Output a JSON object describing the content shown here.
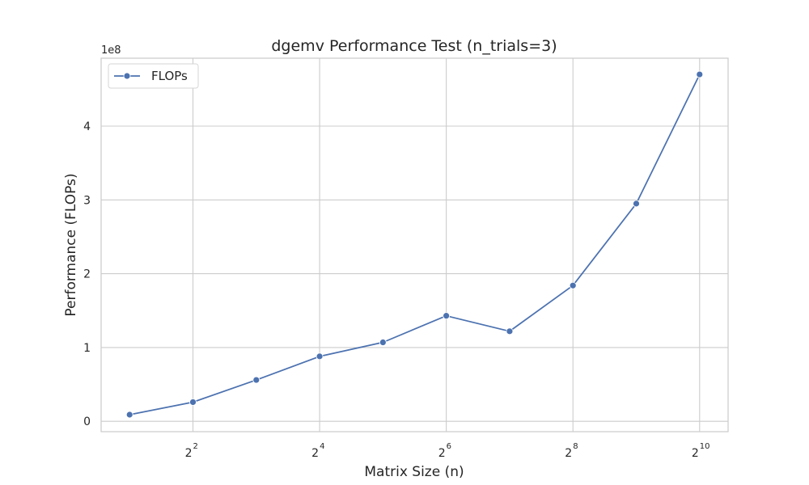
{
  "chart_data": {
    "type": "line",
    "title": "dgemv Performance Test (n_trials=3)",
    "xlabel": "Matrix Size (n)",
    "ylabel": "Performance (FLOPs)",
    "x_scale": "log2",
    "y_offset_label": "1e8",
    "x_ticks": [
      {
        "value": 4,
        "base": "2",
        "exp": "2"
      },
      {
        "value": 16,
        "base": "2",
        "exp": "4"
      },
      {
        "value": 64,
        "base": "2",
        "exp": "6"
      },
      {
        "value": 256,
        "base": "2",
        "exp": "8"
      },
      {
        "value": 1024,
        "base": "2",
        "exp": "10"
      }
    ],
    "y_ticks": [
      {
        "value": 0,
        "label": "0"
      },
      {
        "value": 100000000,
        "label": "1"
      },
      {
        "value": 200000000,
        "label": "2"
      },
      {
        "value": 300000000,
        "label": "3"
      },
      {
        "value": 400000000,
        "label": "4"
      }
    ],
    "x": [
      2,
      4,
      8,
      16,
      32,
      64,
      128,
      256,
      512,
      1024
    ],
    "series": [
      {
        "name": "FLOPs",
        "color": "#4c72b0",
        "values": [
          9000000,
          26000000,
          56000000,
          88000000,
          107000000,
          143000000,
          122000000,
          184000000,
          295000000,
          470000000
        ]
      }
    ],
    "xlim_log2": [
      0.55,
      10.45
    ],
    "ylim": [
      -14000000,
      492000000
    ],
    "grid": true,
    "legend_position": "upper-left"
  }
}
